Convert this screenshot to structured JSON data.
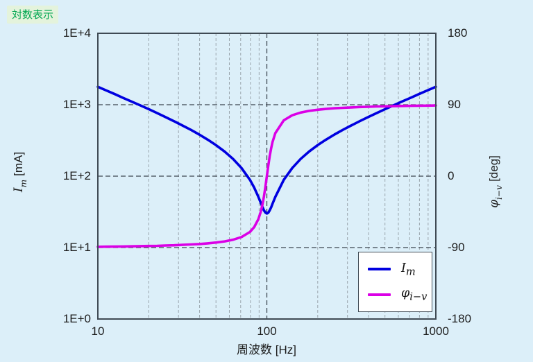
{
  "page": {
    "background": "#DCEFF9"
  },
  "badge": {
    "label": "対数表示",
    "text_color": "#00A650",
    "bg_color": "#E4F3DC"
  },
  "axes": {
    "x": {
      "title": "周波数 [Hz]",
      "ticks": [
        {
          "label": "10",
          "value": 10
        },
        {
          "label": "100",
          "value": 100
        },
        {
          "label": "1000",
          "value": 1000
        }
      ]
    },
    "y_left": {
      "symbol": "I",
      "subscript": "m",
      "unit": "[mA]",
      "ticks": [
        {
          "label": "1E+4",
          "value": 10000
        },
        {
          "label": "1E+3",
          "value": 1000
        },
        {
          "label": "1E+2",
          "value": 100
        },
        {
          "label": "1E+1",
          "value": 10
        },
        {
          "label": "1E+0",
          "value": 1
        }
      ]
    },
    "y_right": {
      "symbol": "φ",
      "subscript": "i−v",
      "unit": "[deg]",
      "ticks": [
        {
          "label": "180",
          "value": 180
        },
        {
          "label": "90",
          "value": 90
        },
        {
          "label": "0",
          "value": 0
        },
        {
          "label": "-90",
          "value": -90
        },
        {
          "label": "-180",
          "value": -180
        }
      ]
    }
  },
  "legend": {
    "items": [
      {
        "symbol": "I",
        "subscript": "m",
        "series": "Im"
      },
      {
        "symbol": "φ",
        "subscript": "i−v",
        "series": "phi"
      }
    ]
  },
  "chart_data": {
    "type": "line",
    "title": "対数表示",
    "xlabel": "周波数 [Hz]",
    "x_scale": "log",
    "xlim": [
      10,
      1000
    ],
    "y_left_axis": {
      "label": "Im [mA]",
      "scale": "log",
      "lim": [
        1,
        10000
      ]
    },
    "y_right_axis": {
      "label": "φi−v [deg]",
      "scale": "linear",
      "lim": [
        -180,
        180
      ]
    },
    "grid": {
      "x_minor": [
        20,
        30,
        40,
        50,
        60,
        70,
        80,
        90,
        200,
        300,
        400,
        500,
        600,
        700,
        800,
        900
      ],
      "x_major": [
        100
      ],
      "y_left_major": [
        10,
        100,
        1000
      ]
    },
    "legend_position": "bottom-right",
    "x": [
      10,
      11.2,
      12.6,
      14.1,
      15.8,
      17.8,
      20,
      22.4,
      25.1,
      28.2,
      31.6,
      35.5,
      39.8,
      44.7,
      50.1,
      56.2,
      63.1,
      70.8,
      79.4,
      84.1,
      89.1,
      92,
      94,
      96,
      98,
      100,
      102,
      104,
      106,
      108,
      112.2,
      125.9,
      141.3,
      158.5,
      177.8,
      199.5,
      223.9,
      251.2,
      281.8,
      316.2,
      354.8,
      398.1,
      446.7,
      501.2,
      562.3,
      631,
      708,
      794.3,
      891.3,
      1000
    ],
    "series": [
      {
        "name": "Im",
        "axis": "left",
        "color": "#0000E0",
        "values": [
          1782,
          1584,
          1408,
          1249,
          1108,
          981,
          867,
          764,
          672,
          589,
          513,
          445,
          382,
          324,
          271,
          221,
          174,
          130,
          88.8,
          69.3,
          51.2,
          42.5,
          37.4,
          33.4,
          30.9,
          30,
          30.8,
          33.2,
          36.6,
          40.9,
          51.2,
          88.8,
          130,
          174,
          221,
          271,
          324,
          382,
          445,
          513,
          589,
          672,
          764,
          867,
          981,
          1108,
          1249,
          1408,
          1584,
          1782
        ]
      },
      {
        "name": "phi",
        "axis": "right",
        "color": "#DB00E6",
        "values": [
          -89,
          -88.9,
          -88.8,
          -88.6,
          -88.4,
          -88.2,
          -88,
          -87.8,
          -87.4,
          -87.1,
          -86.6,
          -86.1,
          -85.5,
          -84.7,
          -83.6,
          -82.2,
          -80.1,
          -76.7,
          -70.3,
          -64.3,
          -54.2,
          -45,
          -36.6,
          -26.1,
          -13.6,
          0,
          13.4,
          25.2,
          35,
          42.7,
          54.2,
          70.3,
          76.7,
          80.1,
          82.2,
          83.6,
          84.7,
          85.5,
          86.1,
          86.6,
          87.1,
          87.4,
          87.8,
          88,
          88.2,
          88.4,
          88.6,
          88.8,
          88.9,
          89
        ]
      }
    ],
    "annotations": {
      "resonance_frequency_hz": 100,
      "min_current_ma": 30,
      "phase_low_freq_deg": -90,
      "phase_high_freq_deg": 90
    }
  },
  "style_colors": {
    "grid_minor": "#9aa5ad",
    "grid_major": "#3c4650",
    "plot_border": "#3f4a54"
  }
}
